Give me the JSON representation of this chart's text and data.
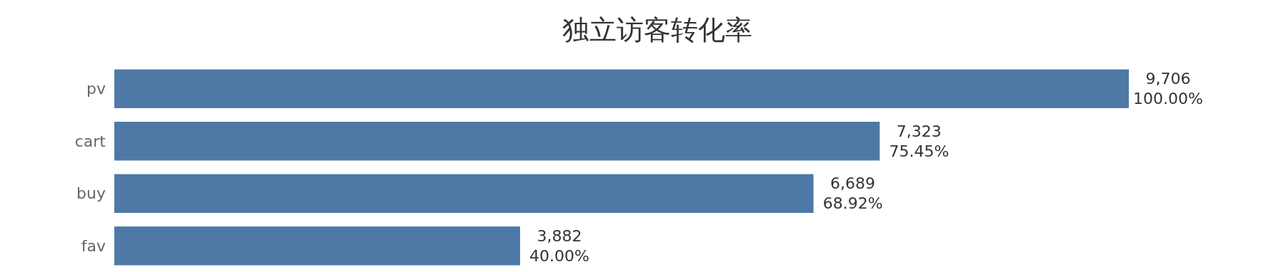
{
  "chart_data": {
    "type": "bar",
    "title": "独立访客转化率",
    "orientation": "horizontal",
    "categories": [
      "pv",
      "cart",
      "buy",
      "fav"
    ],
    "values": [
      9706,
      7323,
      6689,
      3882
    ],
    "value_labels": [
      "9,706\n100.00%",
      "7,323\n75.45%",
      "6,689\n68.92%",
      "3,882\n40.00%"
    ],
    "color": "#4e79a7",
    "grid": false
  }
}
